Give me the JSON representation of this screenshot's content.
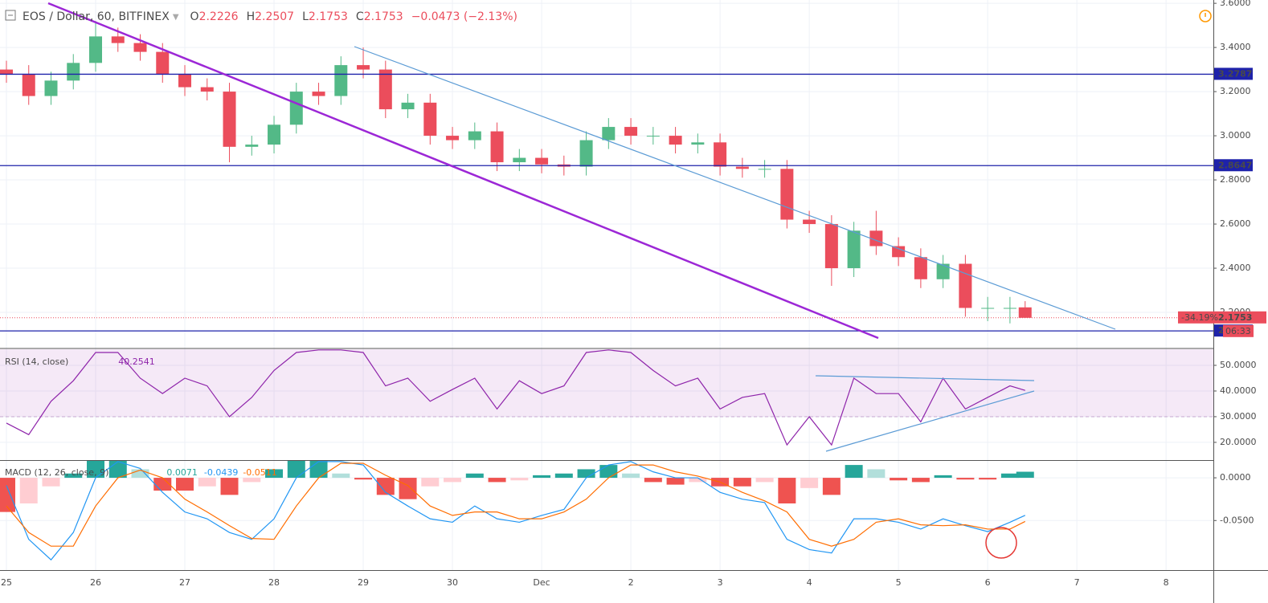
{
  "chart_data": [
    {
      "type": "candlestick",
      "title": "EOS / Dollar, 60, BITFINEX",
      "ohlc_labels": [
        "O",
        "H",
        "L",
        "C"
      ],
      "change": "−0.0473 (−2.13%)",
      "x": [
        0,
        0.25,
        0.5,
        0.75,
        1,
        1.25,
        1.5,
        1.75,
        2,
        2.25,
        2.5,
        2.75,
        3,
        3.25,
        3.5,
        3.75,
        4,
        4.25,
        4.5,
        4.75,
        5,
        5.25,
        5.5,
        5.75,
        6,
        6.25,
        6.5,
        6.75,
        7,
        7.25,
        7.5,
        7.75,
        8,
        8.25,
        8.5,
        8.75,
        9,
        9.25,
        9.5,
        9.75,
        10,
        10.25,
        10.5,
        10.75,
        11,
        11.25,
        11.42
      ],
      "open": [
        3.3,
        3.28,
        3.18,
        3.25,
        3.33,
        3.45,
        3.42,
        3.38,
        3.28,
        3.22,
        3.2,
        2.95,
        2.96,
        3.05,
        3.2,
        3.18,
        3.32,
        3.3,
        3.12,
        3.15,
        3.0,
        2.98,
        3.02,
        2.88,
        2.9,
        2.87,
        2.86,
        2.98,
        3.04,
        3.0,
        3.0,
        2.96,
        2.97,
        2.86,
        2.85,
        2.85,
        2.62,
        2.6,
        2.4,
        2.57,
        2.5,
        2.45,
        2.35,
        2.42,
        2.22,
        2.22,
        2.2226
      ],
      "high": [
        3.34,
        3.32,
        3.29,
        3.37,
        3.52,
        3.49,
        3.46,
        3.42,
        3.32,
        3.26,
        3.24,
        3.0,
        3.09,
        3.24,
        3.24,
        3.36,
        3.4,
        3.34,
        3.19,
        3.19,
        3.04,
        3.06,
        3.06,
        2.94,
        2.94,
        2.91,
        3.02,
        3.08,
        3.08,
        3.04,
        3.04,
        3.01,
        3.01,
        2.9,
        2.89,
        2.89,
        2.66,
        2.64,
        2.61,
        2.66,
        2.54,
        2.49,
        2.46,
        2.46,
        2.27,
        2.27,
        2.2507
      ],
      "low": [
        3.24,
        3.14,
        3.14,
        3.21,
        3.29,
        3.38,
        3.34,
        3.24,
        3.18,
        3.16,
        2.88,
        2.91,
        2.92,
        3.01,
        3.14,
        3.14,
        3.26,
        3.08,
        3.08,
        2.96,
        2.94,
        2.94,
        2.84,
        2.84,
        2.83,
        2.82,
        2.82,
        2.94,
        2.96,
        2.96,
        2.92,
        2.92,
        2.82,
        2.81,
        2.81,
        2.58,
        2.56,
        2.32,
        2.36,
        2.46,
        2.41,
        2.31,
        2.31,
        2.18,
        2.16,
        2.15,
        2.1753
      ],
      "close": [
        3.28,
        3.18,
        3.25,
        3.33,
        3.45,
        3.42,
        3.38,
        3.28,
        3.22,
        3.2,
        2.95,
        2.96,
        3.05,
        3.2,
        3.18,
        3.32,
        3.3,
        3.12,
        3.15,
        3.0,
        2.98,
        3.02,
        2.88,
        2.9,
        2.87,
        2.86,
        2.98,
        3.04,
        3.0,
        3.0,
        2.96,
        2.97,
        2.86,
        2.85,
        2.85,
        2.62,
        2.6,
        2.4,
        2.57,
        2.5,
        2.45,
        2.35,
        2.42,
        2.22,
        2.22,
        2.22,
        2.1753
      ],
      "up_color": "#53b987",
      "down_color": "#eb4d5c",
      "levels": [
        3.2787,
        2.8647,
        2.1158
      ],
      "level_color": "#1e22aa",
      "current_price_change": "-34.19%",
      "countdown": "06:33",
      "xlim": [
        -0.072,
        13.53
      ],
      "xticks": [
        {
          "value": 0,
          "label": "25"
        },
        {
          "value": 1,
          "label": "26"
        },
        {
          "value": 2,
          "label": "27"
        },
        {
          "value": 3,
          "label": "28"
        },
        {
          "value": 4,
          "label": "29"
        },
        {
          "value": 5,
          "label": "30"
        },
        {
          "value": 6,
          "label": "Dec"
        },
        {
          "value": 7,
          "label": "2"
        },
        {
          "value": 8,
          "label": "3"
        },
        {
          "value": 9,
          "label": "4"
        },
        {
          "value": 10,
          "label": "5"
        },
        {
          "value": 11,
          "label": "6"
        },
        {
          "value": 12,
          "label": "7"
        },
        {
          "value": 13,
          "label": "8"
        }
      ],
      "ylim": [
        2.04,
        3.615
      ],
      "yticks": [
        {
          "value": 3.6,
          "label": "3.6000"
        },
        {
          "value": 3.4,
          "label": "3.4000"
        },
        {
          "value": 3.2,
          "label": "3.2000"
        },
        {
          "value": 3.0,
          "label": "3.0000"
        },
        {
          "value": 2.8,
          "label": "2.8000"
        },
        {
          "value": 2.6,
          "label": "2.6000"
        },
        {
          "value": 2.4,
          "label": "2.4000"
        },
        {
          "value": 2.2,
          "label": "2.2000"
        }
      ],
      "grid": true
    },
    {
      "type": "line",
      "title": "RSI (14, close)",
      "color": "#8e24aa",
      "values": [
        27.5,
        23,
        36,
        44,
        55,
        55,
        45,
        39,
        45,
        42,
        30,
        37.5,
        48,
        55,
        56,
        56,
        55,
        42,
        45,
        36,
        40.6,
        45,
        33,
        44,
        39,
        42,
        55,
        56,
        55,
        48,
        42,
        45,
        33,
        37.5,
        39,
        19,
        30,
        19,
        45,
        39,
        39,
        28,
        45,
        33,
        37.5,
        42,
        40.2541
      ],
      "band": [
        30,
        70
      ],
      "ylim": [
        13.1,
        56.25
      ],
      "yticks": [
        {
          "value": 50,
          "label": "50.0000"
        },
        {
          "value": 40,
          "label": "40.0000"
        },
        {
          "value": 30,
          "label": "30.0000"
        },
        {
          "value": 20,
          "label": "20.0000"
        }
      ]
    },
    {
      "type": "macd",
      "title": "MACD (12, 26, close, 9)",
      "macd": [
        -0.009,
        -0.072,
        -0.096,
        -0.064,
        0,
        0.019,
        0.011,
        -0.017,
        -0.04,
        -0.048,
        -0.064,
        -0.072,
        -0.048,
        0,
        0.019,
        0.019,
        0.015,
        -0.017,
        -0.033,
        -0.048,
        -0.052,
        -0.033,
        -0.048,
        -0.052,
        -0.044,
        -0.037,
        0,
        0.015,
        0.019,
        0.007,
        0,
        0,
        -0.017,
        -0.025,
        -0.029,
        -0.072,
        -0.084,
        -0.088,
        -0.048,
        -0.048,
        -0.052,
        -0.06,
        -0.048,
        -0.056,
        -0.063,
        -0.052,
        -0.0439
      ],
      "signal": [
        -0.033,
        -0.064,
        -0.08,
        -0.08,
        -0.033,
        0,
        0.009,
        0,
        -0.025,
        -0.04,
        -0.056,
        -0.071,
        -0.072,
        -0.033,
        0,
        0.017,
        0.017,
        0.003,
        -0.009,
        -0.033,
        -0.044,
        -0.04,
        -0.04,
        -0.048,
        -0.048,
        -0.04,
        -0.025,
        0,
        0.015,
        0.015,
        0.007,
        0.002,
        -0.005,
        -0.017,
        -0.027,
        -0.04,
        -0.072,
        -0.08,
        -0.072,
        -0.052,
        -0.048,
        -0.055,
        -0.056,
        -0.055,
        -0.06,
        -0.06,
        -0.0511
      ],
      "histogram": [
        -0.04,
        -0.03,
        -0.01,
        0.005,
        0.02,
        0.02,
        0.01,
        -0.015,
        -0.015,
        -0.01,
        -0.02,
        -0.005,
        0.01,
        0.02,
        0.02,
        0.005,
        -0.002,
        -0.02,
        -0.025,
        -0.01,
        -0.005,
        0.005,
        -0.005,
        -0.003,
        0.003,
        0.005,
        0.01,
        0.015,
        0.005,
        -0.005,
        -0.008,
        -0.005,
        -0.01,
        -0.01,
        -0.005,
        -0.03,
        -0.012,
        -0.02,
        0.015,
        0.01,
        -0.003,
        -0.005,
        0.003,
        -0.002,
        -0.002,
        0.005,
        0.0071
      ],
      "macd_color": "#2196f3",
      "signal_color": "#ff6d00",
      "hist_colors": [
        "#26a69a",
        "#b2dfdb",
        "#ef5350",
        "#ffcdd2"
      ],
      "ylim": [
        -0.108,
        0.0198
      ],
      "yticks": [
        {
          "value": 0,
          "label": "0.0000"
        },
        {
          "value": -0.05,
          "label": "-0.0500"
        }
      ]
    }
  ]
}
